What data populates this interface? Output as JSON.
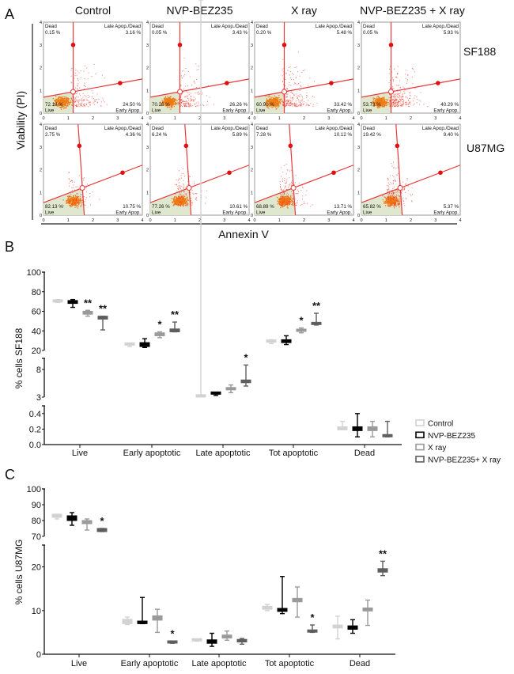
{
  "panel_labels": {
    "a": "A",
    "b": "B",
    "c": "C"
  },
  "colors": {
    "Control": "#d2d2d2",
    "NVP-BEZ235": "#000000",
    "X ray": "#9a9a9a",
    "NVP-BEZ235+ X ray": "#5e5e5e",
    "gate": "#e8383a",
    "dots": "#f23a2a",
    "live_fill": "#dfe8cf",
    "cluster": "#f07a10"
  },
  "chart_data": [
    {
      "type": "scatter",
      "panel": "A",
      "column_titles": [
        "Control",
        "NVP-BEZ235",
        "X ray",
        "NVP-BEZ235 + X ray"
      ],
      "row_labels": [
        "SF188",
        "U87MG"
      ],
      "ylabel": "Viability (PI)",
      "xlabel": "Annexin V",
      "xlim": [
        0,
        4
      ],
      "ylim": [
        0,
        4
      ],
      "ticks": [
        "0",
        "1",
        "2",
        "3",
        "4"
      ],
      "quadrant_labels": {
        "dead": "Dead",
        "late": "Late Apop./Dead",
        "live": "Live",
        "early": "Early Apop."
      },
      "quadrant_percent": [
        [
          {
            "dead": "0.15 %",
            "late": "3.16 %",
            "live": "72.19 %",
            "early": "24.50 %"
          },
          {
            "dead": "0.05 %",
            "late": "3.43 %",
            "live": "70.26 %",
            "early": "26.26 %"
          },
          {
            "dead": "0.20 %",
            "late": "5.48 %",
            "live": "60.90 %",
            "early": "33.42 %"
          },
          {
            "dead": "0.05 %",
            "late": "5.93 %",
            "live": "53.73 %",
            "early": "40.29 %"
          }
        ],
        [
          {
            "dead": "2.75 %",
            "late": "4.36 %",
            "live": "82.13 %",
            "early": "10.75 %"
          },
          {
            "dead": "6.24 %",
            "late": "5.89 %",
            "live": "77.26 %",
            "early": "10.61 %"
          },
          {
            "dead": "7.28 %",
            "late": "10.12 %",
            "live": "68.89 %",
            "early": "13.71 %"
          },
          {
            "dead": "19.42 %",
            "late": "9.40 %",
            "live": "65.82 %",
            "early": "5.37 %"
          }
        ]
      ]
    },
    {
      "type": "box",
      "panel": "B",
      "ylabel": "% cells SF188",
      "categories": [
        "Live",
        "Early apoptotic",
        "Late apoptotic",
        "Tot apoptotic",
        "Dead"
      ],
      "axis_segments": [
        [
          0,
          0.5
        ],
        [
          3,
          10
        ],
        [
          20,
          100
        ]
      ],
      "yticks": [
        [
          "0.0",
          "0.2",
          "0.4"
        ],
        [
          "3",
          "8"
        ],
        [
          "20",
          "40",
          "60",
          "80",
          "100"
        ]
      ],
      "grid": false,
      "legend_position": "right",
      "series": [
        {
          "name": "Control",
          "values": [
            [
              69,
              69,
              71,
              72
            ],
            [
              24,
              25,
              27,
              27
            ],
            [
              2.9,
              3.0,
              3.3,
              3.4
            ],
            [
              27,
              28,
              30,
              31
            ],
            [
              0.2,
              0.19,
              0.23,
              0.3
            ]
          ],
          "stars": [
            "",
            "",
            "",
            "",
            ""
          ]
        },
        {
          "name": "NVP-BEZ235",
          "values": [
            [
              64,
              68,
              71,
              72
            ],
            [
              23,
              24,
              28,
              32
            ],
            [
              3.3,
              3.4,
              3.8,
              3.9
            ],
            [
              26,
              28,
              31,
              35
            ],
            [
              0.1,
              0.18,
              0.23,
              0.4
            ]
          ],
          "stars": [
            "",
            "",
            "",
            "",
            ""
          ]
        },
        {
          "name": "X ray",
          "values": [
            [
              55,
              57,
              60,
              61
            ],
            [
              33,
              35,
              38,
              39
            ],
            [
              3.8,
              4.2,
              4.6,
              5.2
            ],
            [
              38,
              39,
              41,
              43
            ],
            [
              0.1,
              0.18,
              0.23,
              0.3
            ]
          ],
          "stars": [
            "**",
            "*",
            "",
            "*",
            ""
          ]
        },
        {
          "name": "NVP-BEZ235+ X ray",
          "values": [
            [
              41,
              52,
              55,
              55
            ],
            [
              39,
              39,
              42,
              49
            ],
            [
              5.0,
              5.6,
              6.1,
              8.8
            ],
            [
              46,
              46,
              48,
              58
            ],
            [
              0.1,
              0.09,
              0.12,
              0.3
            ]
          ],
          "stars": [
            "**",
            "**",
            "*",
            "**",
            ""
          ]
        }
      ]
    },
    {
      "type": "box",
      "panel": "C",
      "ylabel": "% cells U87MG",
      "categories": [
        "Live",
        "Early apoptotic",
        "Late apoptotic",
        "Tot apoptotic",
        "Dead"
      ],
      "axis_segments": [
        [
          0,
          25
        ],
        [
          70,
          100
        ]
      ],
      "yticks": [
        [
          "0",
          "10",
          "20"
        ],
        [
          "70",
          "80",
          "90",
          "100"
        ]
      ],
      "grid": false,
      "series": [
        {
          "name": "Control",
          "values": [
            [
              81,
              82,
              84,
              84
            ],
            [
              6.8,
              7,
              8,
              8.5
            ],
            [
              3,
              3,
              3.4,
              3.5
            ],
            [
              10,
              10.3,
              11,
              11.4
            ],
            [
              3.5,
              6,
              6.7,
              8.7
            ]
          ],
          "stars": [
            "",
            "",
            "",
            "",
            ""
          ]
        },
        {
          "name": "NVP-BEZ235",
          "values": [
            [
              77,
              80,
              83,
              85
            ],
            [
              7,
              7,
              7.6,
              13
            ],
            [
              1.8,
              2.5,
              3.3,
              4.8
            ],
            [
              9.3,
              9.8,
              10.5,
              17.8
            ],
            [
              4.8,
              5.7,
              6.5,
              7.9
            ]
          ],
          "stars": [
            "",
            "",
            "",
            "",
            ""
          ]
        },
        {
          "name": "X ray",
          "values": [
            [
              74,
              78,
              80,
              81
            ],
            [
              5,
              7.8,
              8.8,
              10.3
            ],
            [
              3.2,
              3.7,
              4.4,
              5.3
            ],
            [
              8.5,
              12,
              12.8,
              15.4
            ],
            [
              6.6,
              9.9,
              10.6,
              12.4
            ]
          ],
          "stars": [
            "",
            "",
            "",
            "",
            ""
          ]
        },
        {
          "name": "NVP-BEZ235+ X ray",
          "values": [
            [
              73,
              73,
              75,
              75
            ],
            [
              2.5,
              2.6,
              2.9,
              3
            ],
            [
              2.3,
              2.8,
              3.4,
              3.6
            ],
            [
              5,
              5,
              5.4,
              6.7
            ],
            [
              18,
              18.8,
              19.6,
              21.3
            ]
          ],
          "stars": [
            "*",
            "*",
            "",
            "*",
            "**"
          ]
        }
      ]
    }
  ],
  "legend": [
    "Control",
    "NVP-BEZ235",
    "X ray",
    "NVP-BEZ235+ X ray"
  ]
}
